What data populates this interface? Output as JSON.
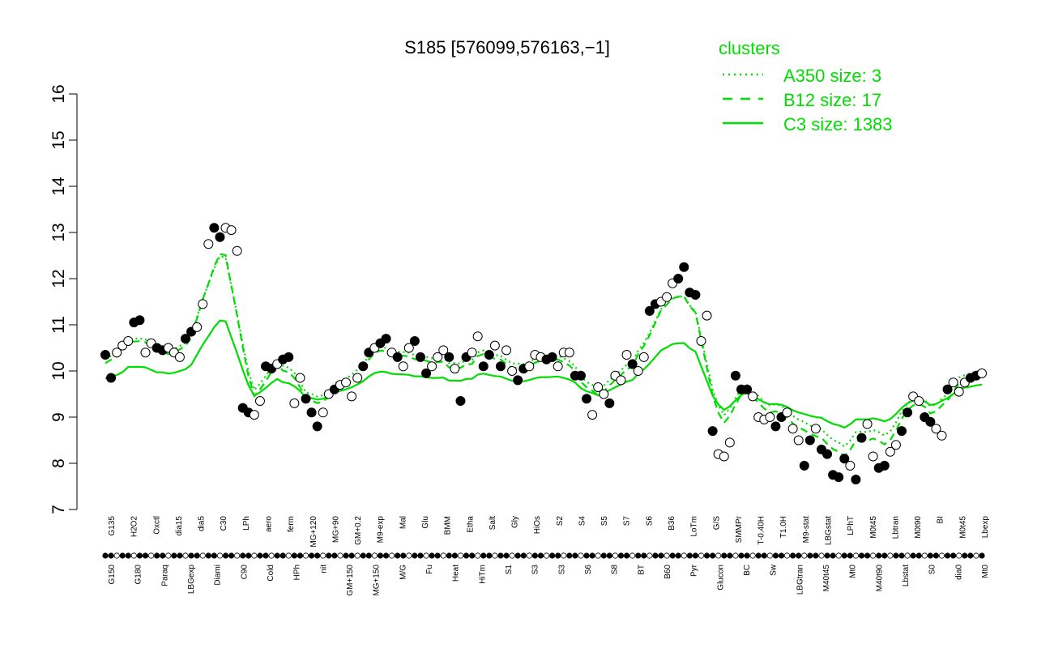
{
  "chart_data": {
    "type": "line",
    "title": "S185 [576099,576163,−1]",
    "xlabel": "",
    "ylabel": "",
    "ylim": [
      7,
      16
    ],
    "yticks": [
      7,
      8,
      9,
      10,
      11,
      12,
      13,
      14,
      15,
      16
    ],
    "legend": {
      "title": "clusters",
      "position": "top-right",
      "entries": [
        {
          "label": "A350 size: 3",
          "style": "dotted"
        },
        {
          "label": "B12 size: 17",
          "style": "dashed"
        },
        {
          "label": "C3 size: 1383",
          "style": "solid"
        }
      ]
    },
    "colors": {
      "series": "#00dd00",
      "points": "#000000"
    },
    "xtick_labels_upper": [
      "G135",
      "H2O2",
      "Oxctl",
      "dia15",
      "dia5",
      "C30",
      "LPh",
      "aero",
      "ferm",
      "MG+120",
      "MG+90",
      "GM+0.2",
      "M9-exp",
      "Mal",
      "Glu",
      "BMM",
      "Etha",
      "Salt",
      "Gly",
      "HiOs",
      "S2",
      "S4",
      "S5",
      "S7",
      "S6",
      "B36",
      "LoTm",
      "G/S",
      "SMMPr",
      "T-0.40H",
      "T1.0H",
      "M9-stat",
      "LBGstat",
      "LPhT",
      "M0t45",
      "Lbtran",
      "M0t90",
      "BI",
      "M0t45",
      "Lbexp"
    ],
    "xtick_labels_lower": [
      "G150",
      "G180",
      "Paraq",
      "LBGexp",
      "Diami",
      "C90",
      "Cold",
      "HPh",
      "nit",
      "GM+150",
      "MG+150",
      "M/G",
      "Fu",
      "Heat",
      "HiTm",
      "S1",
      "S3",
      "S3",
      "S6",
      "S8",
      "BT",
      "B60",
      "Pyr",
      "Glucon",
      "BC",
      "Sw",
      "LBGtran",
      "M40t45",
      "Mt0",
      "M40t90",
      "Lbstat",
      "S0",
      "dia0",
      "Mt0"
    ],
    "n_conditions": 154,
    "points": [
      {
        "x": 1,
        "y": 10.35,
        "fill": "black"
      },
      {
        "x": 2,
        "y": 9.85,
        "fill": "black"
      },
      {
        "x": 3,
        "y": 10.4,
        "fill": "white"
      },
      {
        "x": 4,
        "y": 10.55,
        "fill": "white"
      },
      {
        "x": 5,
        "y": 10.65,
        "fill": "white"
      },
      {
        "x": 6,
        "y": 11.05,
        "fill": "black"
      },
      {
        "x": 7,
        "y": 11.1,
        "fill": "black"
      },
      {
        "x": 8,
        "y": 10.4,
        "fill": "white"
      },
      {
        "x": 9,
        "y": 10.6,
        "fill": "white"
      },
      {
        "x": 10,
        "y": 10.5,
        "fill": "black"
      },
      {
        "x": 11,
        "y": 10.45,
        "fill": "black"
      },
      {
        "x": 12,
        "y": 10.5,
        "fill": "white"
      },
      {
        "x": 13,
        "y": 10.4,
        "fill": "white"
      },
      {
        "x": 14,
        "y": 10.3,
        "fill": "white"
      },
      {
        "x": 15,
        "y": 10.7,
        "fill": "black"
      },
      {
        "x": 16,
        "y": 10.85,
        "fill": "black"
      },
      {
        "x": 17,
        "y": 10.95,
        "fill": "white"
      },
      {
        "x": 18,
        "y": 11.45,
        "fill": "white"
      },
      {
        "x": 19,
        "y": 12.75,
        "fill": "white"
      },
      {
        "x": 20,
        "y": 13.1,
        "fill": "black"
      },
      {
        "x": 21,
        "y": 12.9,
        "fill": "black"
      },
      {
        "x": 22,
        "y": 13.1,
        "fill": "white"
      },
      {
        "x": 23,
        "y": 13.05,
        "fill": "white"
      },
      {
        "x": 24,
        "y": 12.6,
        "fill": "white"
      },
      {
        "x": 25,
        "y": 9.2,
        "fill": "black"
      },
      {
        "x": 26,
        "y": 9.1,
        "fill": "black"
      },
      {
        "x": 27,
        "y": 9.05,
        "fill": "white"
      },
      {
        "x": 28,
        "y": 9.35,
        "fill": "white"
      },
      {
        "x": 29,
        "y": 10.1,
        "fill": "black"
      },
      {
        "x": 30,
        "y": 10.05,
        "fill": "black"
      },
      {
        "x": 31,
        "y": 10.15,
        "fill": "white"
      },
      {
        "x": 32,
        "y": 10.25,
        "fill": "black"
      },
      {
        "x": 33,
        "y": 10.3,
        "fill": "black"
      },
      {
        "x": 34,
        "y": 9.3,
        "fill": "white"
      },
      {
        "x": 35,
        "y": 9.85,
        "fill": "white"
      },
      {
        "x": 36,
        "y": 9.4,
        "fill": "black"
      },
      {
        "x": 37,
        "y": 9.1,
        "fill": "black"
      },
      {
        "x": 38,
        "y": 8.8,
        "fill": "black"
      },
      {
        "x": 39,
        "y": 9.1,
        "fill": "white"
      },
      {
        "x": 40,
        "y": 9.5,
        "fill": "white"
      },
      {
        "x": 41,
        "y": 9.6,
        "fill": "black"
      },
      {
        "x": 42,
        "y": 9.7,
        "fill": "white"
      },
      {
        "x": 43,
        "y": 9.75,
        "fill": "white"
      },
      {
        "x": 44,
        "y": 9.45,
        "fill": "white"
      },
      {
        "x": 45,
        "y": 9.85,
        "fill": "white"
      },
      {
        "x": 46,
        "y": 10.1,
        "fill": "black"
      },
      {
        "x": 47,
        "y": 10.4,
        "fill": "black"
      },
      {
        "x": 48,
        "y": 10.5,
        "fill": "white"
      },
      {
        "x": 49,
        "y": 10.6,
        "fill": "black"
      },
      {
        "x": 50,
        "y": 10.7,
        "fill": "black"
      },
      {
        "x": 51,
        "y": 10.4,
        "fill": "white"
      },
      {
        "x": 52,
        "y": 10.3,
        "fill": "black"
      },
      {
        "x": 53,
        "y": 10.1,
        "fill": "white"
      },
      {
        "x": 54,
        "y": 10.5,
        "fill": "white"
      },
      {
        "x": 55,
        "y": 10.65,
        "fill": "black"
      },
      {
        "x": 56,
        "y": 10.3,
        "fill": "black"
      },
      {
        "x": 57,
        "y": 9.95,
        "fill": "black"
      },
      {
        "x": 58,
        "y": 10.1,
        "fill": "white"
      },
      {
        "x": 59,
        "y": 10.3,
        "fill": "white"
      },
      {
        "x": 60,
        "y": 10.45,
        "fill": "white"
      },
      {
        "x": 61,
        "y": 10.3,
        "fill": "black"
      },
      {
        "x": 62,
        "y": 10.05,
        "fill": "white"
      },
      {
        "x": 63,
        "y": 9.35,
        "fill": "black"
      },
      {
        "x": 64,
        "y": 10.3,
        "fill": "black"
      },
      {
        "x": 65,
        "y": 10.4,
        "fill": "white"
      },
      {
        "x": 66,
        "y": 10.75,
        "fill": "white"
      },
      {
        "x": 67,
        "y": 10.1,
        "fill": "black"
      },
      {
        "x": 68,
        "y": 10.35,
        "fill": "black"
      },
      {
        "x": 69,
        "y": 10.55,
        "fill": "white"
      },
      {
        "x": 70,
        "y": 10.1,
        "fill": "black"
      },
      {
        "x": 71,
        "y": 10.45,
        "fill": "white"
      },
      {
        "x": 72,
        "y": 10.0,
        "fill": "white"
      },
      {
        "x": 73,
        "y": 9.8,
        "fill": "black"
      },
      {
        "x": 74,
        "y": 10.05,
        "fill": "black"
      },
      {
        "x": 75,
        "y": 10.1,
        "fill": "white"
      },
      {
        "x": 76,
        "y": 10.35,
        "fill": "white"
      },
      {
        "x": 77,
        "y": 10.3,
        "fill": "white"
      },
      {
        "x": 78,
        "y": 10.25,
        "fill": "black"
      },
      {
        "x": 79,
        "y": 10.3,
        "fill": "black"
      },
      {
        "x": 80,
        "y": 10.1,
        "fill": "white"
      },
      {
        "x": 81,
        "y": 10.4,
        "fill": "white"
      },
      {
        "x": 82,
        "y": 10.4,
        "fill": "white"
      },
      {
        "x": 83,
        "y": 9.9,
        "fill": "black"
      },
      {
        "x": 84,
        "y": 9.9,
        "fill": "black"
      },
      {
        "x": 85,
        "y": 9.4,
        "fill": "black"
      },
      {
        "x": 86,
        "y": 9.05,
        "fill": "white"
      },
      {
        "x": 87,
        "y": 9.65,
        "fill": "white"
      },
      {
        "x": 88,
        "y": 9.5,
        "fill": "white"
      },
      {
        "x": 89,
        "y": 9.3,
        "fill": "black"
      },
      {
        "x": 90,
        "y": 9.9,
        "fill": "white"
      },
      {
        "x": 91,
        "y": 9.8,
        "fill": "white"
      },
      {
        "x": 92,
        "y": 10.35,
        "fill": "white"
      },
      {
        "x": 93,
        "y": 10.15,
        "fill": "black"
      },
      {
        "x": 94,
        "y": 10.0,
        "fill": "white"
      },
      {
        "x": 95,
        "y": 10.3,
        "fill": "white"
      },
      {
        "x": 96,
        "y": 11.3,
        "fill": "black"
      },
      {
        "x": 97,
        "y": 11.45,
        "fill": "black"
      },
      {
        "x": 98,
        "y": 11.5,
        "fill": "white"
      },
      {
        "x": 99,
        "y": 11.6,
        "fill": "white"
      },
      {
        "x": 100,
        "y": 11.9,
        "fill": "white"
      },
      {
        "x": 101,
        "y": 12.0,
        "fill": "black"
      },
      {
        "x": 102,
        "y": 12.25,
        "fill": "black"
      },
      {
        "x": 103,
        "y": 11.7,
        "fill": "black"
      },
      {
        "x": 104,
        "y": 11.65,
        "fill": "black"
      },
      {
        "x": 105,
        "y": 10.65,
        "fill": "white"
      },
      {
        "x": 106,
        "y": 11.2,
        "fill": "white"
      },
      {
        "x": 107,
        "y": 8.7,
        "fill": "black"
      },
      {
        "x": 108,
        "y": 8.2,
        "fill": "white"
      },
      {
        "x": 109,
        "y": 8.15,
        "fill": "white"
      },
      {
        "x": 110,
        "y": 8.45,
        "fill": "white"
      },
      {
        "x": 111,
        "y": 9.9,
        "fill": "black"
      },
      {
        "x": 112,
        "y": 9.6,
        "fill": "black"
      },
      {
        "x": 113,
        "y": 9.6,
        "fill": "black"
      },
      {
        "x": 114,
        "y": 9.45,
        "fill": "white"
      },
      {
        "x": 115,
        "y": 9.0,
        "fill": "white"
      },
      {
        "x": 116,
        "y": 8.95,
        "fill": "white"
      },
      {
        "x": 117,
        "y": 9.0,
        "fill": "white"
      },
      {
        "x": 118,
        "y": 8.8,
        "fill": "black"
      },
      {
        "x": 119,
        "y": 9.0,
        "fill": "black"
      },
      {
        "x": 120,
        "y": 9.1,
        "fill": "white"
      },
      {
        "x": 121,
        "y": 8.75,
        "fill": "white"
      },
      {
        "x": 122,
        "y": 8.5,
        "fill": "white"
      },
      {
        "x": 123,
        "y": 7.95,
        "fill": "black"
      },
      {
        "x": 124,
        "y": 8.5,
        "fill": "black"
      },
      {
        "x": 125,
        "y": 8.75,
        "fill": "white"
      },
      {
        "x": 126,
        "y": 8.3,
        "fill": "black"
      },
      {
        "x": 127,
        "y": 8.2,
        "fill": "black"
      },
      {
        "x": 128,
        "y": 7.75,
        "fill": "black"
      },
      {
        "x": 129,
        "y": 7.7,
        "fill": "black"
      },
      {
        "x": 130,
        "y": 8.1,
        "fill": "black"
      },
      {
        "x": 131,
        "y": 7.95,
        "fill": "white"
      },
      {
        "x": 132,
        "y": 7.65,
        "fill": "black"
      },
      {
        "x": 133,
        "y": 8.55,
        "fill": "black"
      },
      {
        "x": 134,
        "y": 8.85,
        "fill": "white"
      },
      {
        "x": 135,
        "y": 8.15,
        "fill": "white"
      },
      {
        "x": 136,
        "y": 7.9,
        "fill": "black"
      },
      {
        "x": 137,
        "y": 7.95,
        "fill": "black"
      },
      {
        "x": 138,
        "y": 8.25,
        "fill": "white"
      },
      {
        "x": 139,
        "y": 8.4,
        "fill": "white"
      },
      {
        "x": 140,
        "y": 8.7,
        "fill": "black"
      },
      {
        "x": 141,
        "y": 9.1,
        "fill": "black"
      },
      {
        "x": 142,
        "y": 9.45,
        "fill": "white"
      },
      {
        "x": 143,
        "y": 9.35,
        "fill": "white"
      },
      {
        "x": 144,
        "y": 9.0,
        "fill": "black"
      },
      {
        "x": 145,
        "y": 8.9,
        "fill": "black"
      },
      {
        "x": 146,
        "y": 8.75,
        "fill": "white"
      },
      {
        "x": 147,
        "y": 8.6,
        "fill": "white"
      },
      {
        "x": 148,
        "y": 9.6,
        "fill": "black"
      },
      {
        "x": 149,
        "y": 9.75,
        "fill": "white"
      },
      {
        "x": 150,
        "y": 9.55,
        "fill": "white"
      },
      {
        "x": 151,
        "y": 9.75,
        "fill": "white"
      },
      {
        "x": 152,
        "y": 9.85,
        "fill": "black"
      },
      {
        "x": 153,
        "y": 9.9,
        "fill": "black"
      },
      {
        "x": 154,
        "y": 9.95,
        "fill": "white"
      }
    ]
  }
}
